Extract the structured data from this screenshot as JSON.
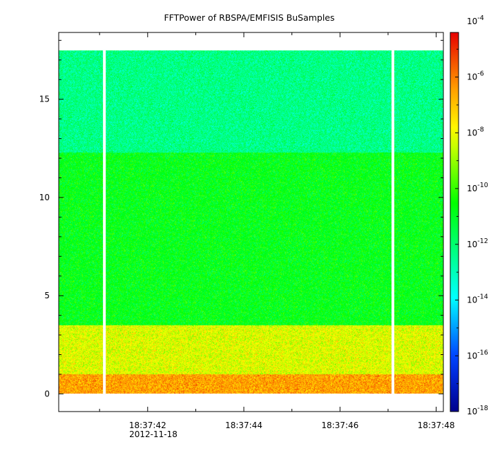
{
  "chart_data": {
    "type": "heatmap",
    "title": "FFTPower of RBSPA/EMFISIS  BuSamples",
    "xlabel": "",
    "ylabel": "",
    "x_ticks": [
      "18:37:42",
      "18:37:44",
      "18:37:46",
      "18:37:48"
    ],
    "x_tick_seconds": [
      42,
      44,
      46,
      48
    ],
    "x_date_label": "2012-11-18",
    "xlim_seconds": [
      40.15,
      48.15
    ],
    "y_ticks": [
      0,
      5,
      10,
      15
    ],
    "ylim": [
      -0.9,
      18.4
    ],
    "data_ymax": 17.5,
    "colorbar": {
      "scale": "log",
      "range_exponents": [
        -18,
        -4.4
      ],
      "tick_exponents": [
        -4,
        -6,
        -8,
        -10,
        -12,
        -14,
        -16,
        -18
      ],
      "tick_labels": [
        "10",
        "10",
        "10",
        "10",
        "10",
        "10",
        "10",
        "10"
      ],
      "tick_superscripts": [
        "-4",
        "-6",
        "-8",
        "-10",
        "-12",
        "-14",
        "-16",
        "-18"
      ]
    },
    "bands": [
      {
        "y_from": 12.3,
        "y_to": 17.5,
        "log_power": -12.3
      },
      {
        "y_from": 3.5,
        "y_to": 12.3,
        "log_power": -10.8
      },
      {
        "y_from": 1.0,
        "y_to": 3.5,
        "log_power": -8.2
      },
      {
        "y_from": 0.0,
        "y_to": 1.0,
        "log_power": -6.5
      }
    ],
    "data_gaps_seconds": [
      41.1,
      47.1
    ],
    "grid": false,
    "legend": "colorbar-right"
  }
}
